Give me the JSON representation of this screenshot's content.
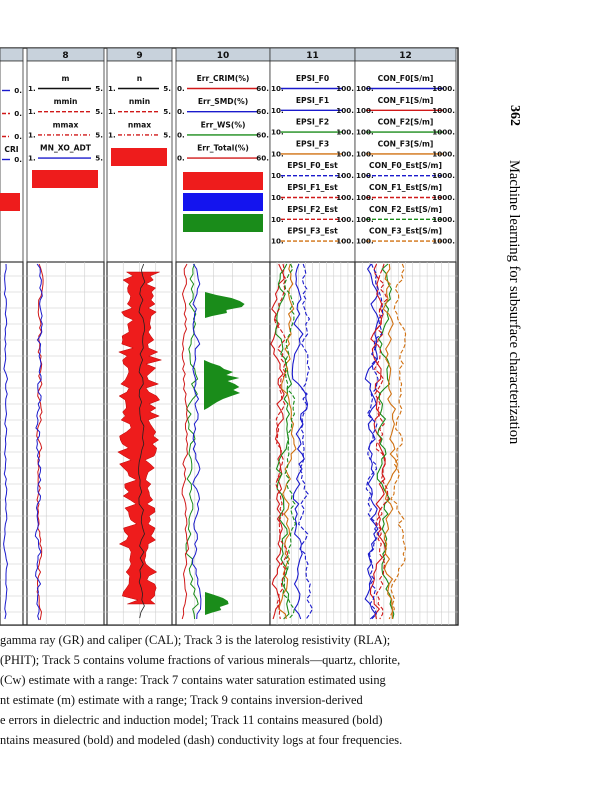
{
  "running_head": {
    "page_number": "362",
    "book_title": "Machine learning for subsurface characterization"
  },
  "figure": {
    "tracks": [
      {
        "number": "",
        "curves": [
          {
            "name": "",
            "min": "",
            "max": "0.",
            "color": "#1a1acc",
            "style": "solid"
          },
          {
            "name": "",
            "min": "",
            "max": "0.",
            "color": "#d01818",
            "style": "dash"
          },
          {
            "name": "",
            "min": "",
            "max": "0.",
            "color": "#d01818",
            "style": "dashdot"
          },
          {
            "name": "CRI",
            "min": "",
            "max": "0.",
            "color": "#1a1acc",
            "style": "solid"
          }
        ],
        "fills": [
          "#ee1c1c"
        ]
      },
      {
        "number": "8",
        "curves": [
          {
            "name": "m",
            "min": "1.",
            "max": "5.",
            "color": "#111111",
            "style": "solid"
          },
          {
            "name": "mmin",
            "min": "1.",
            "max": "5.",
            "color": "#d01818",
            "style": "dash"
          },
          {
            "name": "mmax",
            "min": "1.",
            "max": "5.",
            "color": "#d01818",
            "style": "dashdot"
          },
          {
            "name": "MN_XO_ADT",
            "min": "1.",
            "max": "5.",
            "color": "#1a1acc",
            "style": "solid"
          }
        ],
        "fills": [
          "#ee1c1c"
        ]
      },
      {
        "number": "9",
        "curves": [
          {
            "name": "n",
            "min": "1.",
            "max": "5.",
            "color": "#111111",
            "style": "solid"
          },
          {
            "name": "nmin",
            "min": "1.",
            "max": "5.",
            "color": "#d01818",
            "style": "dash"
          },
          {
            "name": "nmax",
            "min": "1.",
            "max": "5.",
            "color": "#d01818",
            "style": "dashdot"
          }
        ],
        "fills": [
          "#ee1c1c"
        ]
      },
      {
        "number": "10",
        "curves": [
          {
            "name": "Err_CRIM(%)",
            "min": "0.",
            "max": "60.",
            "color": "#d01818",
            "style": "solid"
          },
          {
            "name": "Err_SMD(%)",
            "min": "0.",
            "max": "60.",
            "color": "#1a1acc",
            "style": "solid"
          },
          {
            "name": "Err_WS(%)",
            "min": "0.",
            "max": "60.",
            "color": "#1a8c1a",
            "style": "solid"
          },
          {
            "name": "Err_Total(%)",
            "min": "0.",
            "max": "60.",
            "color": "#d01818",
            "style": "solid"
          }
        ],
        "fills": [
          "#ee1c1c",
          "#1414ee",
          "#1a8c1a"
        ]
      },
      {
        "number": "11",
        "curves": [
          {
            "name": "EPSI_F0",
            "min": "10.",
            "max": "100.",
            "color": "#1a1acc",
            "style": "solid"
          },
          {
            "name": "EPSI_F1",
            "min": "10.",
            "max": "100.",
            "color": "#1a1acc",
            "style": "solid"
          },
          {
            "name": "EPSI_F2",
            "min": "10.",
            "max": "100.",
            "color": "#1a8c1a",
            "style": "solid"
          },
          {
            "name": "EPSI_F3",
            "min": "10.",
            "max": "100.",
            "color": "#d07010",
            "style": "solid"
          },
          {
            "name": "EPSI_F0_Est",
            "min": "10.",
            "max": "100.",
            "color": "#1a1acc",
            "style": "dash"
          },
          {
            "name": "EPSI_F1_Est",
            "min": "10.",
            "max": "100.",
            "color": "#d01818",
            "style": "dash"
          },
          {
            "name": "EPSI_F2_Est",
            "min": "10.",
            "max": "100.",
            "color": "#d01818",
            "style": "dash"
          },
          {
            "name": "EPSI_F3_Est",
            "min": "10.",
            "max": "100.",
            "color": "#d07010",
            "style": "dash"
          }
        ],
        "fills": []
      },
      {
        "number": "12",
        "curves": [
          {
            "name": "CON_F0[S/m]",
            "min": "100.",
            "max": "1000.",
            "color": "#1a1acc",
            "style": "solid"
          },
          {
            "name": "CON_F1[S/m]",
            "min": "100.",
            "max": "1000.",
            "color": "#d01818",
            "style": "solid"
          },
          {
            "name": "CON_F2[S/m]",
            "min": "100.",
            "max": "1000.",
            "color": "#1a8c1a",
            "style": "solid"
          },
          {
            "name": "CON_F3[S/m]",
            "min": "100.",
            "max": "1000.",
            "color": "#d07010",
            "style": "solid"
          },
          {
            "name": "CON_F0_Est[S/m]",
            "min": "100.",
            "max": "1000.",
            "color": "#1a1acc",
            "style": "dash"
          },
          {
            "name": "CON_F1_Est[S/m]",
            "min": "100.",
            "max": "1000.",
            "color": "#d01818",
            "style": "dash"
          },
          {
            "name": "CON_F2_Est[S/m]",
            "min": "100.",
            "max": "1000.",
            "color": "#1a8c1a",
            "style": "dash"
          },
          {
            "name": "CON_F3_Est[S/m]",
            "min": "100.",
            "max": "1000.",
            "color": "#d07010",
            "style": "dash"
          }
        ],
        "fills": []
      }
    ]
  },
  "caption_lines": [
    "gamma ray (GR) and caliper (CAL); Track 3 is the laterolog resistivity (RLA);",
    "(PHIT); Track 5 contains volume fractions of various minerals—quartz, chlorite,",
    "(Cw) estimate with a range: Track 7 contains water saturation estimated using",
    "nt estimate (m) estimate with a range; Track 9 contains inversion-derived",
    "e errors in dielectric and induction model; Track 11 contains measured (bold)",
    "ntains measured (bold) and modeled (dash) conductivity logs at four frequencies."
  ]
}
